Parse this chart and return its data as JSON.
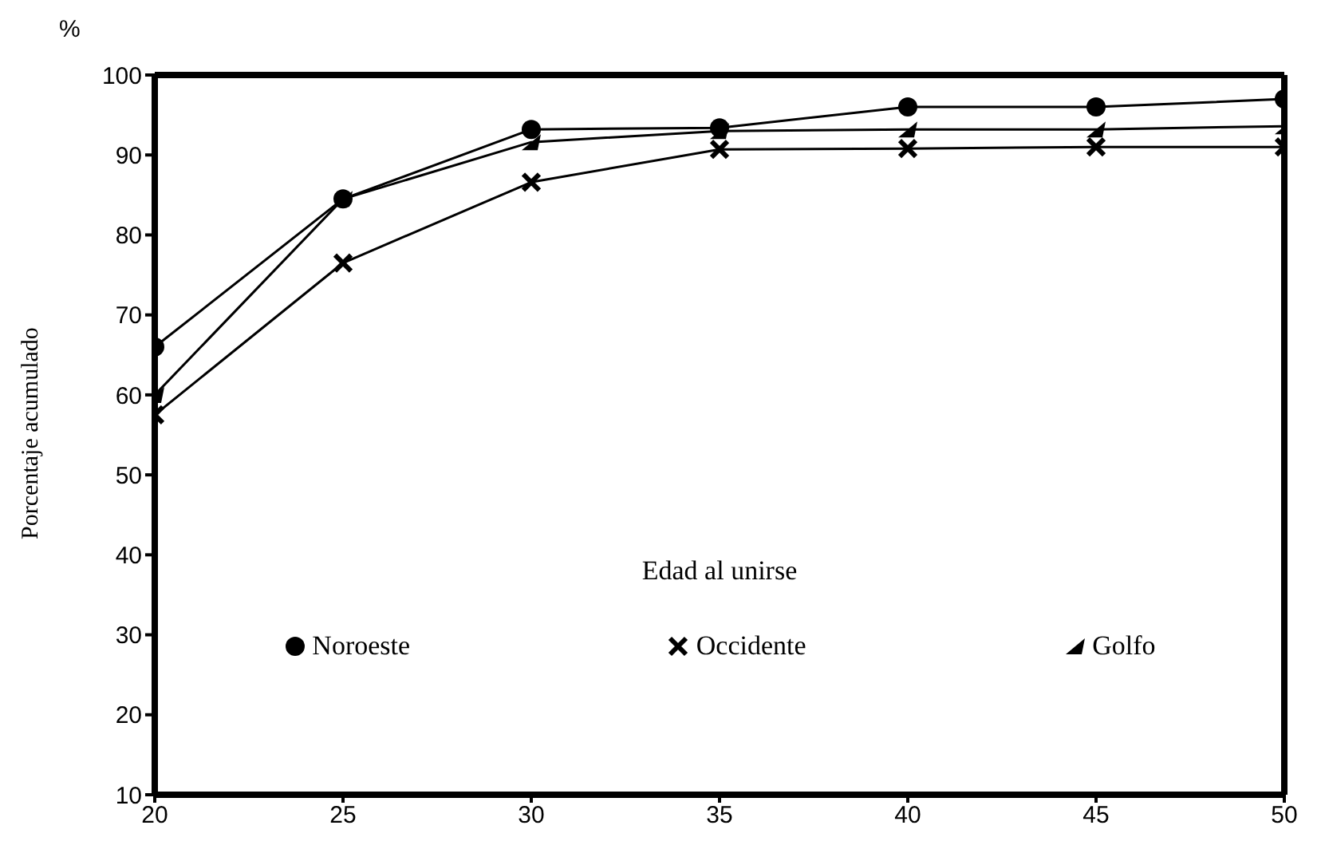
{
  "chart_data": {
    "type": "line",
    "xlabel": "Edad al unirse",
    "ylabel": "Porcentaje acumulado",
    "annotations": [
      "%"
    ],
    "x": [
      20,
      25,
      30,
      35,
      40,
      45,
      50
    ],
    "series": [
      {
        "name": "Noroeste",
        "color": "#000000",
        "marker": "circle",
        "values": [
          66,
          84.5,
          93.2,
          93.4,
          96,
          96,
          97
        ]
      },
      {
        "name": "Occidente",
        "color": "#000000",
        "marker": "cross",
        "values": [
          57.5,
          76.5,
          86.6,
          90.7,
          90.8,
          91,
          91
        ]
      },
      {
        "name": "Golfo",
        "color": "#000000",
        "marker": "triangle",
        "values": [
          60,
          84.5,
          91.6,
          93,
          93.2,
          93.2,
          93.6
        ]
      }
    ],
    "xlim": [
      20,
      50
    ],
    "xticks": [
      20,
      25,
      30,
      35,
      40,
      45,
      50
    ],
    "ylim": [
      10,
      100
    ],
    "yticks": [
      10,
      20,
      30,
      40,
      50,
      60,
      70,
      80,
      90,
      100
    ],
    "grid": false,
    "legend": "bottom",
    "line_style": "solid"
  }
}
